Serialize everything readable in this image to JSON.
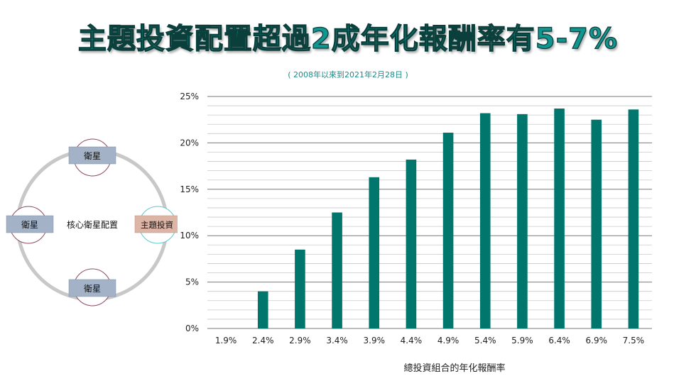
{
  "header": {
    "title": "主題投資配置超過2成年化報酬率有5-7%",
    "subtitle": "( 2008年以來到2021年2月28日 )"
  },
  "diagram": {
    "center_label": "核心衛星配置",
    "top_label": "衛星",
    "left_label": "衛星",
    "bottom_label": "衛星",
    "right_label": "主題投資",
    "colors": {
      "satellite_box": "#a3b2c6",
      "theme_box": "#ddb5a6",
      "ring": "#c8c8c8",
      "satellite_circle": "#8b4a5e",
      "theme_circle": "#5cc7d1"
    }
  },
  "chart_data": {
    "type": "bar",
    "categories": [
      "1.9%",
      "2.4%",
      "2.9%",
      "3.4%",
      "3.9%",
      "4.4%",
      "4.9%",
      "5.4%",
      "5.9%",
      "6.4%",
      "6.9%",
      "7.5%"
    ],
    "values": [
      0,
      4.0,
      8.5,
      12.5,
      16.3,
      18.2,
      21.1,
      23.2,
      23.1,
      23.7,
      22.5,
      23.6
    ],
    "xlabel": "總投資組合的年化報酬率",
    "ylabel": "",
    "ylim": [
      0,
      25
    ],
    "yticks": [
      "0%",
      "5%",
      "10%",
      "15%",
      "20%",
      "25%"
    ],
    "grid": true,
    "bar_color": "#00766c"
  }
}
